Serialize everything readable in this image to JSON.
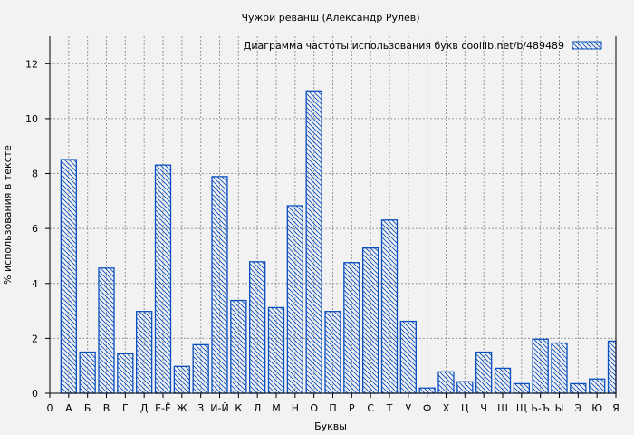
{
  "chart_data": {
    "type": "bar",
    "title": "Чужой реванш (Александр Рулев)",
    "xlabel": "Буквы",
    "ylabel": "% использования в тексте",
    "legend": {
      "label": "Диаграмма частоты использования букв  coollib.net/b/489489",
      "placement": "top-right"
    },
    "x_tick_labels": [
      "0",
      "А",
      "Б",
      "В",
      "Г",
      "Д",
      "Е-Ё",
      "Ж",
      "З",
      "И-Й",
      "К",
      "Л",
      "М",
      "Н",
      "О",
      "П",
      "Р",
      "С",
      "Т",
      "У",
      "Ф",
      "Х",
      "Ц",
      "Ч",
      "Ш",
      "Щ",
      "Ь-Ъ",
      "Ы",
      "Э",
      "Ю",
      "Я"
    ],
    "categories": [
      "А",
      "Б",
      "В",
      "Г",
      "Д",
      "Е-Ё",
      "Ж",
      "З",
      "И-Й",
      "К",
      "Л",
      "М",
      "Н",
      "О",
      "П",
      "Р",
      "С",
      "Т",
      "У",
      "Ф",
      "Х",
      "Ц",
      "Ч",
      "Ш",
      "Щ",
      "Ь-Ъ",
      "Ы",
      "Э",
      "Ю",
      "Я"
    ],
    "values": [
      8.51,
      1.5,
      4.56,
      1.44,
      2.98,
      8.31,
      0.98,
      1.77,
      7.89,
      3.38,
      4.79,
      3.12,
      6.83,
      11.01,
      2.98,
      4.76,
      5.29,
      6.31,
      2.62,
      0.19,
      0.78,
      0.42,
      1.5,
      0.91,
      0.35,
      1.97,
      1.83,
      0.35,
      0.52,
      1.9
    ],
    "y_ticks": [
      0,
      2,
      4,
      6,
      8,
      10,
      12
    ],
    "ylim": [
      0,
      13
    ],
    "xlim": [
      0,
      30
    ],
    "grid": true,
    "bar_color": "#0a4fbf",
    "background": "#f2f2f2"
  }
}
